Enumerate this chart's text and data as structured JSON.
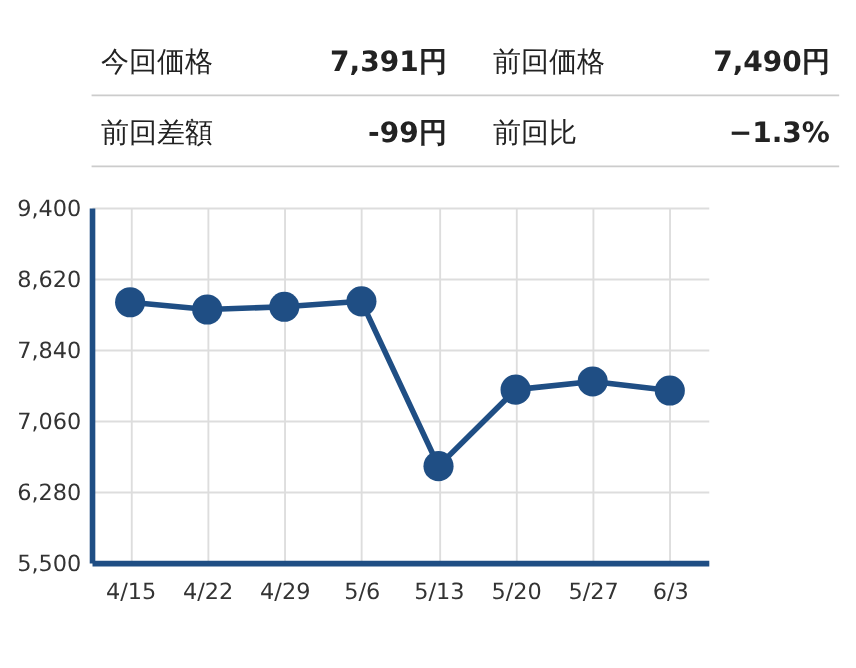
{
  "chart_data": {
    "type": "line",
    "annotations": [
      "今回価格",
      "7,391円",
      "前回価格",
      "7,490円",
      "前回差額",
      "-99円",
      "前回比",
      "−1.3%"
    ],
    "categories": [
      "4/15",
      "4/22",
      "4/29",
      "5/6",
      "5/13",
      "5/20",
      "5/27",
      "6/3"
    ],
    "series": [
      {
        "color": "#1f4e84",
        "values": [
          8360,
          8280,
          8310,
          8370,
          6560,
          7400,
          7490,
          7390
        ]
      }
    ],
    "ylim": [
      5500,
      9400
    ],
    "yticks": [
      {
        "value": 5500,
        "label": "5,500"
      },
      {
        "value": 6280,
        "label": "6,280"
      },
      {
        "value": 7060,
        "label": "7,060"
      },
      {
        "value": 7840,
        "label": "7,840"
      },
      {
        "value": 8620,
        "label": "8,620"
      },
      {
        "value": 9400,
        "label": "9,400"
      }
    ],
    "grid": true,
    "marker": "circle",
    "line_style": "solid"
  }
}
